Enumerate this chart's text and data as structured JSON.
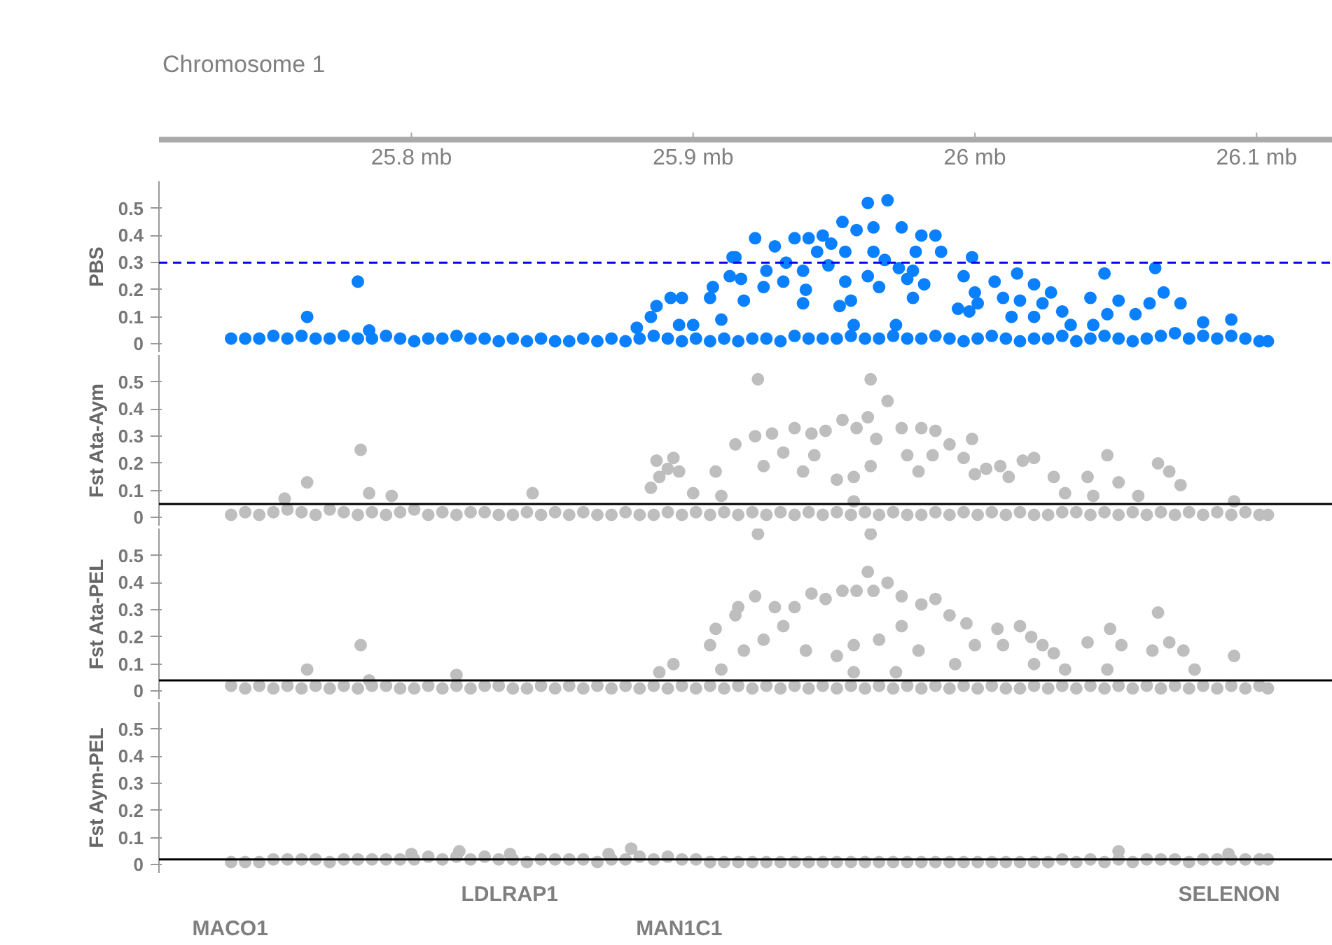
{
  "chart_data": [
    {
      "type": "scatter",
      "ylabel": "PBS",
      "annotations": [
        "Chromosome 1"
      ],
      "marker": "circle",
      "xlim": [
        25.7104,
        26.127
      ],
      "xticks": [
        {
          "value": 25.8,
          "label": "25.8 mb"
        },
        {
          "value": 25.9,
          "label": "25.9 mb"
        },
        {
          "value": 26.0,
          "label": "26 mb"
        },
        {
          "value": 26.1,
          "label": "26.1 mb"
        }
      ],
      "ylim": [
        -0.03,
        0.6
      ],
      "yticks": [
        0,
        0.1,
        0.2,
        0.3,
        0.4,
        0.5
      ],
      "ref_lines": [
        {
          "axis": "y",
          "value": 0.3,
          "color": "#0000ff",
          "line_style": "dashed"
        }
      ],
      "series": [
        {
          "color": "#0a80ff",
          "x": [
            25.736,
            25.741,
            25.746,
            25.751,
            25.756,
            25.761,
            25.766,
            25.771,
            25.776,
            25.781,
            25.786,
            25.791,
            25.796,
            25.801,
            25.806,
            25.811,
            25.816,
            25.821,
            25.826,
            25.831,
            25.836,
            25.841,
            25.846,
            25.851,
            25.856,
            25.861,
            25.866,
            25.871,
            25.876,
            25.881,
            25.886,
            25.891,
            25.896,
            25.901,
            25.906,
            25.911,
            25.916,
            25.921,
            25.926,
            25.931,
            25.936,
            25.941,
            25.946,
            25.951,
            25.956,
            25.961,
            25.966,
            25.971,
            25.976,
            25.981,
            25.986,
            25.991,
            25.996,
            26.001,
            26.006,
            26.011,
            26.016,
            26.021,
            26.026,
            26.031,
            26.036,
            26.041,
            26.046,
            26.051,
            26.056,
            26.061,
            26.066,
            26.071,
            26.076,
            26.081,
            26.086,
            26.091,
            26.096,
            26.101,
            26.104
          ],
          "values": [
            0.02,
            0.02,
            0.02,
            0.03,
            0.02,
            0.03,
            0.02,
            0.02,
            0.03,
            0.02,
            0.02,
            0.03,
            0.02,
            0.01,
            0.02,
            0.02,
            0.03,
            0.02,
            0.02,
            0.01,
            0.02,
            0.01,
            0.02,
            0.01,
            0.01,
            0.02,
            0.01,
            0.02,
            0.01,
            0.02,
            0.03,
            0.02,
            0.01,
            0.02,
            0.01,
            0.02,
            0.01,
            0.02,
            0.02,
            0.01,
            0.03,
            0.02,
            0.02,
            0.02,
            0.03,
            0.02,
            0.02,
            0.03,
            0.02,
            0.02,
            0.03,
            0.02,
            0.01,
            0.02,
            0.03,
            0.02,
            0.01,
            0.02,
            0.02,
            0.03,
            0.01,
            0.02,
            0.03,
            0.02,
            0.01,
            0.02,
            0.03,
            0.04,
            0.02,
            0.03,
            0.02,
            0.03,
            0.02,
            0.01,
            0.01
          ]
        },
        {
          "color": "#0a80ff",
          "x": [
            25.781,
            25.763,
            25.785,
            25.887,
            25.892,
            25.896,
            25.907,
            25.906,
            25.914,
            25.913,
            25.895,
            25.91,
            25.962,
            25.969,
            25.953,
            25.958,
            25.964,
            25.974,
            25.922,
            25.936,
            25.941,
            25.946,
            25.929,
            25.981,
            25.986,
            25.915,
            25.964,
            25.968,
            25.944,
            25.949,
            25.954,
            25.979,
            25.988,
            25.999,
            26.064,
            26.046,
            25.926,
            25.933,
            25.939,
            25.948,
            25.973,
            25.978,
            25.917,
            25.925,
            25.932,
            25.94,
            25.954,
            25.962,
            25.966,
            25.976,
            25.982,
            25.996,
            26.007,
            26.015,
            26.021,
            25.918,
            25.939,
            25.952,
            25.956,
            25.978,
            26.0,
            26.001,
            26.01,
            26.016,
            26.027,
            26.024,
            26.041,
            26.051,
            26.067,
            26.062,
            26.073,
            26.057,
            26.047,
            26.042,
            26.013,
            26.021,
            26.031,
            26.034,
            25.998,
            25.994,
            25.885,
            26.091,
            26.081,
            25.972,
            25.957,
            25.9,
            25.88
          ],
          "values": [
            0.23,
            0.1,
            0.05,
            0.14,
            0.17,
            0.17,
            0.21,
            0.17,
            0.32,
            0.25,
            0.07,
            0.09,
            0.52,
            0.53,
            0.45,
            0.42,
            0.43,
            0.43,
            0.39,
            0.39,
            0.39,
            0.4,
            0.36,
            0.4,
            0.4,
            0.32,
            0.34,
            0.31,
            0.34,
            0.37,
            0.34,
            0.34,
            0.34,
            0.32,
            0.28,
            0.26,
            0.27,
            0.3,
            0.27,
            0.29,
            0.28,
            0.27,
            0.24,
            0.21,
            0.23,
            0.2,
            0.23,
            0.25,
            0.21,
            0.24,
            0.22,
            0.25,
            0.23,
            0.26,
            0.22,
            0.16,
            0.15,
            0.14,
            0.16,
            0.17,
            0.19,
            0.15,
            0.17,
            0.16,
            0.19,
            0.15,
            0.17,
            0.16,
            0.19,
            0.15,
            0.15,
            0.11,
            0.11,
            0.07,
            0.1,
            0.1,
            0.12,
            0.07,
            0.12,
            0.13,
            0.1,
            0.09,
            0.08,
            0.07,
            0.07,
            0.07,
            0.06
          ]
        }
      ]
    },
    {
      "type": "scatter",
      "ylabel": "Fst Ata-Aym",
      "marker": "circle",
      "xlim": [
        25.7104,
        26.127
      ],
      "tick_labels": "y",
      "ylim": [
        -0.03,
        0.6
      ],
      "yticks": [
        0,
        0.1,
        0.2,
        0.3,
        0.4,
        0.5
      ],
      "ref_lines": [
        {
          "axis": "y",
          "value": 0.05,
          "color": "#000000",
          "line_style": "solid"
        }
      ],
      "series": [
        {
          "color": "#bebebe",
          "x": [
            25.736,
            25.741,
            25.746,
            25.751,
            25.756,
            25.761,
            25.766,
            25.771,
            25.776,
            25.781,
            25.786,
            25.791,
            25.796,
            25.801,
            25.806,
            25.811,
            25.816,
            25.821,
            25.826,
            25.831,
            25.836,
            25.841,
            25.846,
            25.851,
            25.856,
            25.861,
            25.866,
            25.871,
            25.876,
            25.881,
            25.886,
            25.891,
            25.896,
            25.901,
            25.906,
            25.911,
            25.916,
            25.921,
            25.926,
            25.931,
            25.936,
            25.941,
            25.946,
            25.951,
            25.956,
            25.961,
            25.966,
            25.971,
            25.976,
            25.981,
            25.986,
            25.991,
            25.996,
            26.001,
            26.006,
            26.011,
            26.016,
            26.021,
            26.026,
            26.031,
            26.036,
            26.041,
            26.046,
            26.051,
            26.056,
            26.061,
            26.066,
            26.071,
            26.076,
            26.081,
            26.086,
            26.091,
            26.096,
            26.101,
            26.104
          ],
          "values": [
            0.01,
            0.02,
            0.01,
            0.02,
            0.03,
            0.02,
            0.01,
            0.03,
            0.02,
            0.01,
            0.02,
            0.01,
            0.02,
            0.03,
            0.01,
            0.02,
            0.01,
            0.02,
            0.02,
            0.01,
            0.01,
            0.02,
            0.01,
            0.02,
            0.01,
            0.02,
            0.01,
            0.01,
            0.02,
            0.01,
            0.01,
            0.02,
            0.01,
            0.02,
            0.01,
            0.02,
            0.01,
            0.02,
            0.01,
            0.02,
            0.01,
            0.02,
            0.01,
            0.02,
            0.01,
            0.02,
            0.01,
            0.02,
            0.01,
            0.01,
            0.02,
            0.01,
            0.02,
            0.01,
            0.02,
            0.01,
            0.02,
            0.01,
            0.01,
            0.02,
            0.02,
            0.01,
            0.02,
            0.01,
            0.02,
            0.01,
            0.02,
            0.01,
            0.02,
            0.01,
            0.02,
            0.01,
            0.02,
            0.01,
            0.01
          ]
        },
        {
          "color": "#bebebe",
          "x": [
            25.923,
            25.963,
            25.969,
            25.782,
            25.763,
            25.953,
            25.958,
            25.962,
            25.965,
            25.974,
            25.981,
            25.986,
            25.991,
            25.999,
            25.996,
            26.0,
            26.009,
            26.017,
            26.021,
            26.028,
            26.032,
            26.047,
            26.04,
            26.051,
            26.065,
            26.069,
            26.073,
            26.058,
            25.936,
            25.942,
            25.947,
            25.928,
            25.922,
            25.915,
            25.908,
            25.925,
            25.932,
            25.939,
            25.951,
            25.957,
            25.976,
            25.98,
            25.985,
            25.893,
            25.891,
            25.895,
            25.887,
            25.888,
            25.885,
            25.9,
            25.91,
            26.004,
            26.012,
            26.042,
            25.963,
            25.943,
            25.785,
            25.755,
            25.793,
            25.843,
            25.957,
            26.092
          ],
          "values": [
            0.51,
            0.51,
            0.43,
            0.25,
            0.13,
            0.36,
            0.33,
            0.37,
            0.29,
            0.33,
            0.33,
            0.32,
            0.27,
            0.29,
            0.22,
            0.16,
            0.19,
            0.21,
            0.22,
            0.15,
            0.09,
            0.23,
            0.15,
            0.13,
            0.2,
            0.17,
            0.12,
            0.08,
            0.33,
            0.31,
            0.32,
            0.31,
            0.3,
            0.27,
            0.17,
            0.19,
            0.24,
            0.17,
            0.14,
            0.15,
            0.23,
            0.17,
            0.23,
            0.22,
            0.18,
            0.17,
            0.21,
            0.15,
            0.11,
            0.09,
            0.08,
            0.18,
            0.15,
            0.08,
            0.19,
            0.23,
            0.09,
            0.07,
            0.08,
            0.09,
            0.06,
            0.06
          ]
        }
      ]
    },
    {
      "type": "scatter",
      "ylabel": "Fst Ata-PEL",
      "marker": "circle",
      "xlim": [
        25.7104,
        26.127
      ],
      "tick_labels": "y",
      "ylim": [
        -0.03,
        0.6
      ],
      "yticks": [
        0,
        0.1,
        0.2,
        0.3,
        0.4,
        0.5
      ],
      "ref_lines": [
        {
          "axis": "y",
          "value": 0.04,
          "color": "#000000",
          "line_style": "solid"
        }
      ],
      "series": [
        {
          "color": "#bebebe",
          "x": [
            25.736,
            25.741,
            25.746,
            25.751,
            25.756,
            25.761,
            25.766,
            25.771,
            25.776,
            25.781,
            25.786,
            25.791,
            25.796,
            25.801,
            25.806,
            25.811,
            25.816,
            25.821,
            25.826,
            25.831,
            25.836,
            25.841,
            25.846,
            25.851,
            25.856,
            25.861,
            25.866,
            25.871,
            25.876,
            25.881,
            25.886,
            25.891,
            25.896,
            25.901,
            25.906,
            25.911,
            25.916,
            25.921,
            25.926,
            25.931,
            25.936,
            25.941,
            25.946,
            25.951,
            25.956,
            25.961,
            25.966,
            25.971,
            25.976,
            25.981,
            25.986,
            25.991,
            25.996,
            26.001,
            26.006,
            26.011,
            26.016,
            26.021,
            26.026,
            26.031,
            26.036,
            26.041,
            26.046,
            26.051,
            26.056,
            26.061,
            26.066,
            26.071,
            26.076,
            26.081,
            26.086,
            26.091,
            26.096,
            26.101,
            26.104
          ],
          "values": [
            0.02,
            0.01,
            0.02,
            0.01,
            0.02,
            0.01,
            0.02,
            0.01,
            0.02,
            0.01,
            0.02,
            0.02,
            0.01,
            0.01,
            0.02,
            0.01,
            0.02,
            0.01,
            0.02,
            0.02,
            0.01,
            0.01,
            0.02,
            0.01,
            0.02,
            0.01,
            0.02,
            0.01,
            0.02,
            0.01,
            0.02,
            0.01,
            0.02,
            0.01,
            0.02,
            0.01,
            0.02,
            0.01,
            0.02,
            0.01,
            0.02,
            0.01,
            0.02,
            0.01,
            0.02,
            0.01,
            0.02,
            0.01,
            0.02,
            0.01,
            0.02,
            0.01,
            0.02,
            0.01,
            0.02,
            0.01,
            0.01,
            0.02,
            0.01,
            0.02,
            0.01,
            0.02,
            0.01,
            0.02,
            0.01,
            0.02,
            0.01,
            0.02,
            0.01,
            0.02,
            0.01,
            0.02,
            0.01,
            0.02,
            0.01
          ]
        },
        {
          "color": "#bebebe",
          "x": [
            25.923,
            25.963,
            25.962,
            25.969,
            25.964,
            25.953,
            25.958,
            25.942,
            25.947,
            25.936,
            25.929,
            25.922,
            25.916,
            25.915,
            25.908,
            25.906,
            25.918,
            25.925,
            25.932,
            25.94,
            25.951,
            25.957,
            25.966,
            25.974,
            25.981,
            25.986,
            25.991,
            25.974,
            25.98,
            25.997,
            26.0,
            25.993,
            26.008,
            26.016,
            26.01,
            26.02,
            26.024,
            26.028,
            26.021,
            26.032,
            26.04,
            26.048,
            26.052,
            26.047,
            26.065,
            26.063,
            26.069,
            26.074,
            26.092,
            26.078,
            25.893,
            25.888,
            25.91,
            25.957,
            25.972,
            25.782,
            25.763,
            25.785,
            25.816
          ],
          "values": [
            0.58,
            0.58,
            0.44,
            0.4,
            0.37,
            0.37,
            0.37,
            0.36,
            0.34,
            0.31,
            0.31,
            0.35,
            0.31,
            0.28,
            0.23,
            0.17,
            0.15,
            0.19,
            0.24,
            0.15,
            0.13,
            0.17,
            0.19,
            0.35,
            0.32,
            0.34,
            0.28,
            0.24,
            0.15,
            0.25,
            0.17,
            0.1,
            0.23,
            0.24,
            0.17,
            0.2,
            0.17,
            0.14,
            0.1,
            0.08,
            0.18,
            0.23,
            0.17,
            0.08,
            0.29,
            0.15,
            0.18,
            0.15,
            0.13,
            0.08,
            0.1,
            0.07,
            0.08,
            0.07,
            0.07,
            0.17,
            0.08,
            0.04,
            0.06
          ]
        }
      ]
    },
    {
      "type": "scatter",
      "ylabel": "Fst Aym-PEL",
      "marker": "circle",
      "xlim": [
        25.7104,
        26.127
      ],
      "tick_labels": "y",
      "ylim": [
        -0.03,
        0.6
      ],
      "yticks": [
        0,
        0.1,
        0.2,
        0.3,
        0.4,
        0.5
      ],
      "ref_lines": [
        {
          "axis": "y",
          "value": 0.02,
          "color": "#000000",
          "line_style": "solid"
        }
      ],
      "series": [
        {
          "color": "#bebebe",
          "x": [
            25.736,
            25.741,
            25.746,
            25.751,
            25.756,
            25.761,
            25.766,
            25.771,
            25.776,
            25.781,
            25.786,
            25.791,
            25.796,
            25.801,
            25.806,
            25.811,
            25.816,
            25.821,
            25.826,
            25.831,
            25.836,
            25.841,
            25.846,
            25.851,
            25.856,
            25.861,
            25.866,
            25.871,
            25.876,
            25.881,
            25.886,
            25.891,
            25.896,
            25.901,
            25.906,
            25.911,
            25.916,
            25.921,
            25.926,
            25.931,
            25.936,
            25.941,
            25.946,
            25.951,
            25.956,
            25.961,
            25.966,
            25.971,
            25.976,
            25.981,
            25.986,
            25.991,
            25.996,
            26.001,
            26.006,
            26.011,
            26.016,
            26.021,
            26.026,
            26.031,
            26.036,
            26.041,
            26.046,
            26.051,
            26.056,
            26.061,
            26.066,
            26.071,
            26.076,
            26.081,
            26.086,
            26.091,
            26.096,
            26.101,
            26.104
          ],
          "values": [
            0.01,
            0.01,
            0.01,
            0.02,
            0.02,
            0.02,
            0.02,
            0.01,
            0.02,
            0.02,
            0.02,
            0.02,
            0.02,
            0.02,
            0.03,
            0.02,
            0.03,
            0.02,
            0.03,
            0.02,
            0.02,
            0.01,
            0.02,
            0.02,
            0.02,
            0.02,
            0.01,
            0.02,
            0.02,
            0.03,
            0.02,
            0.03,
            0.02,
            0.02,
            0.01,
            0.01,
            0.01,
            0.01,
            0.01,
            0.01,
            0.01,
            0.01,
            0.01,
            0.01,
            0.01,
            0.01,
            0.01,
            0.01,
            0.01,
            0.01,
            0.01,
            0.01,
            0.01,
            0.01,
            0.01,
            0.01,
            0.01,
            0.01,
            0.01,
            0.02,
            0.01,
            0.02,
            0.01,
            0.02,
            0.01,
            0.02,
            0.02,
            0.02,
            0.01,
            0.02,
            0.02,
            0.02,
            0.02,
            0.02,
            0.02
          ]
        },
        {
          "color": "#bebebe",
          "x": [
            25.878,
            26.051,
            25.817,
            25.8,
            25.835,
            25.87,
            26.09
          ],
          "values": [
            0.06,
            0.05,
            0.05,
            0.04,
            0.04,
            0.04,
            0.04
          ]
        }
      ]
    },
    {
      "type": "other",
      "annotations": [
        "MACO1",
        "LDLRAP1",
        "MAN1C1",
        "SELENON"
      ]
    }
  ]
}
